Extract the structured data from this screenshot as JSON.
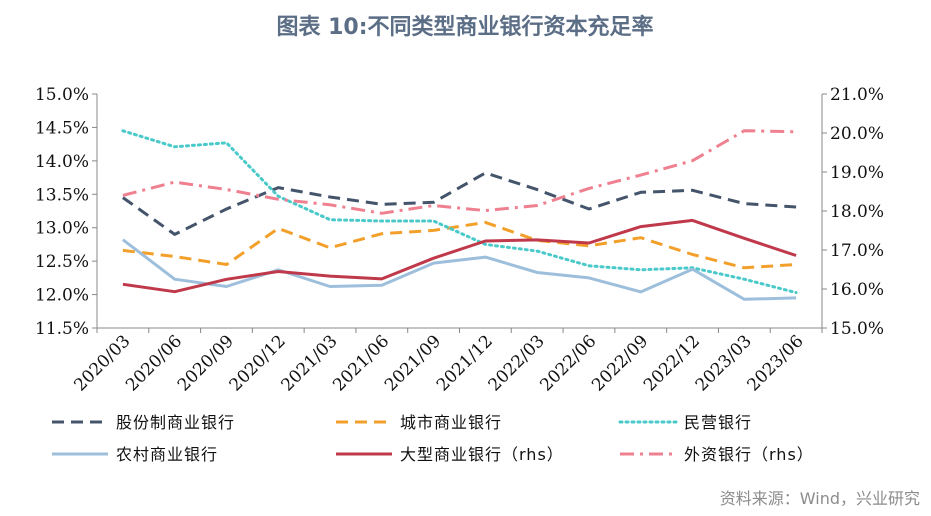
{
  "chart_data": {
    "type": "line",
    "title": "图表 10:不同类型商业银行资本充足率",
    "source": "资料来源：Wind，兴业研究",
    "categories": [
      "2020/03",
      "2020/06",
      "2020/09",
      "2020/12",
      "2021/03",
      "2021/06",
      "2021/09",
      "2021/12",
      "2022/03",
      "2022/06",
      "2022/09",
      "2022/12",
      "2023/03",
      "2023/06"
    ],
    "y_left": {
      "min": 11.5,
      "max": 15.0,
      "step": 0.5,
      "ticks": [
        "11.5%",
        "12.0%",
        "12.5%",
        "13.0%",
        "13.5%",
        "14.0%",
        "14.5%",
        "15.0%"
      ]
    },
    "y_right": {
      "min": 15.0,
      "max": 21.0,
      "step": 1.0,
      "ticks": [
        "15.0%",
        "16.0%",
        "17.0%",
        "18.0%",
        "19.0%",
        "20.0%",
        "21.0%"
      ]
    },
    "series": [
      {
        "name": "股份制商业银行",
        "axis": "left",
        "color": "#44546a",
        "dash": "dash",
        "values": [
          13.45,
          12.9,
          13.28,
          13.6,
          13.46,
          13.35,
          13.38,
          13.82,
          13.57,
          13.28,
          13.53,
          13.56,
          13.36,
          13.31
        ]
      },
      {
        "name": "城市商业银行",
        "axis": "left",
        "color": "#f3a02b",
        "dash": "dash",
        "values": [
          12.66,
          12.57,
          12.45,
          12.99,
          12.7,
          12.91,
          12.96,
          13.08,
          12.81,
          12.73,
          12.85,
          12.6,
          12.4,
          12.45
        ]
      },
      {
        "name": "民营银行",
        "axis": "left",
        "color": "#49c9c9",
        "dash": "dot",
        "values": [
          14.45,
          14.21,
          14.27,
          13.47,
          13.12,
          13.1,
          13.1,
          12.75,
          12.65,
          12.43,
          12.37,
          12.4,
          12.23,
          12.03
        ]
      },
      {
        "name": "农村商业银行",
        "axis": "left",
        "color": "#9dbfdb",
        "dash": "solid",
        "values": [
          12.82,
          12.23,
          12.12,
          12.37,
          12.12,
          12.14,
          12.47,
          12.56,
          12.33,
          12.25,
          12.04,
          12.38,
          11.93,
          11.95
        ]
      },
      {
        "name": "大型商业银行（rhs）",
        "axis": "right",
        "color": "#c0394b",
        "dash": "solid",
        "values": [
          16.12,
          15.93,
          16.25,
          16.45,
          16.33,
          16.26,
          16.79,
          17.23,
          17.26,
          17.18,
          17.6,
          17.76,
          17.3,
          16.86
        ]
      },
      {
        "name": "外资银行（rhs）",
        "axis": "right",
        "color": "#ef8090",
        "dash": "dashdot",
        "values": [
          18.4,
          18.74,
          18.55,
          18.3,
          18.16,
          17.94,
          18.14,
          18.01,
          18.14,
          18.58,
          18.92,
          19.29,
          20.06,
          20.03
        ]
      }
    ]
  }
}
